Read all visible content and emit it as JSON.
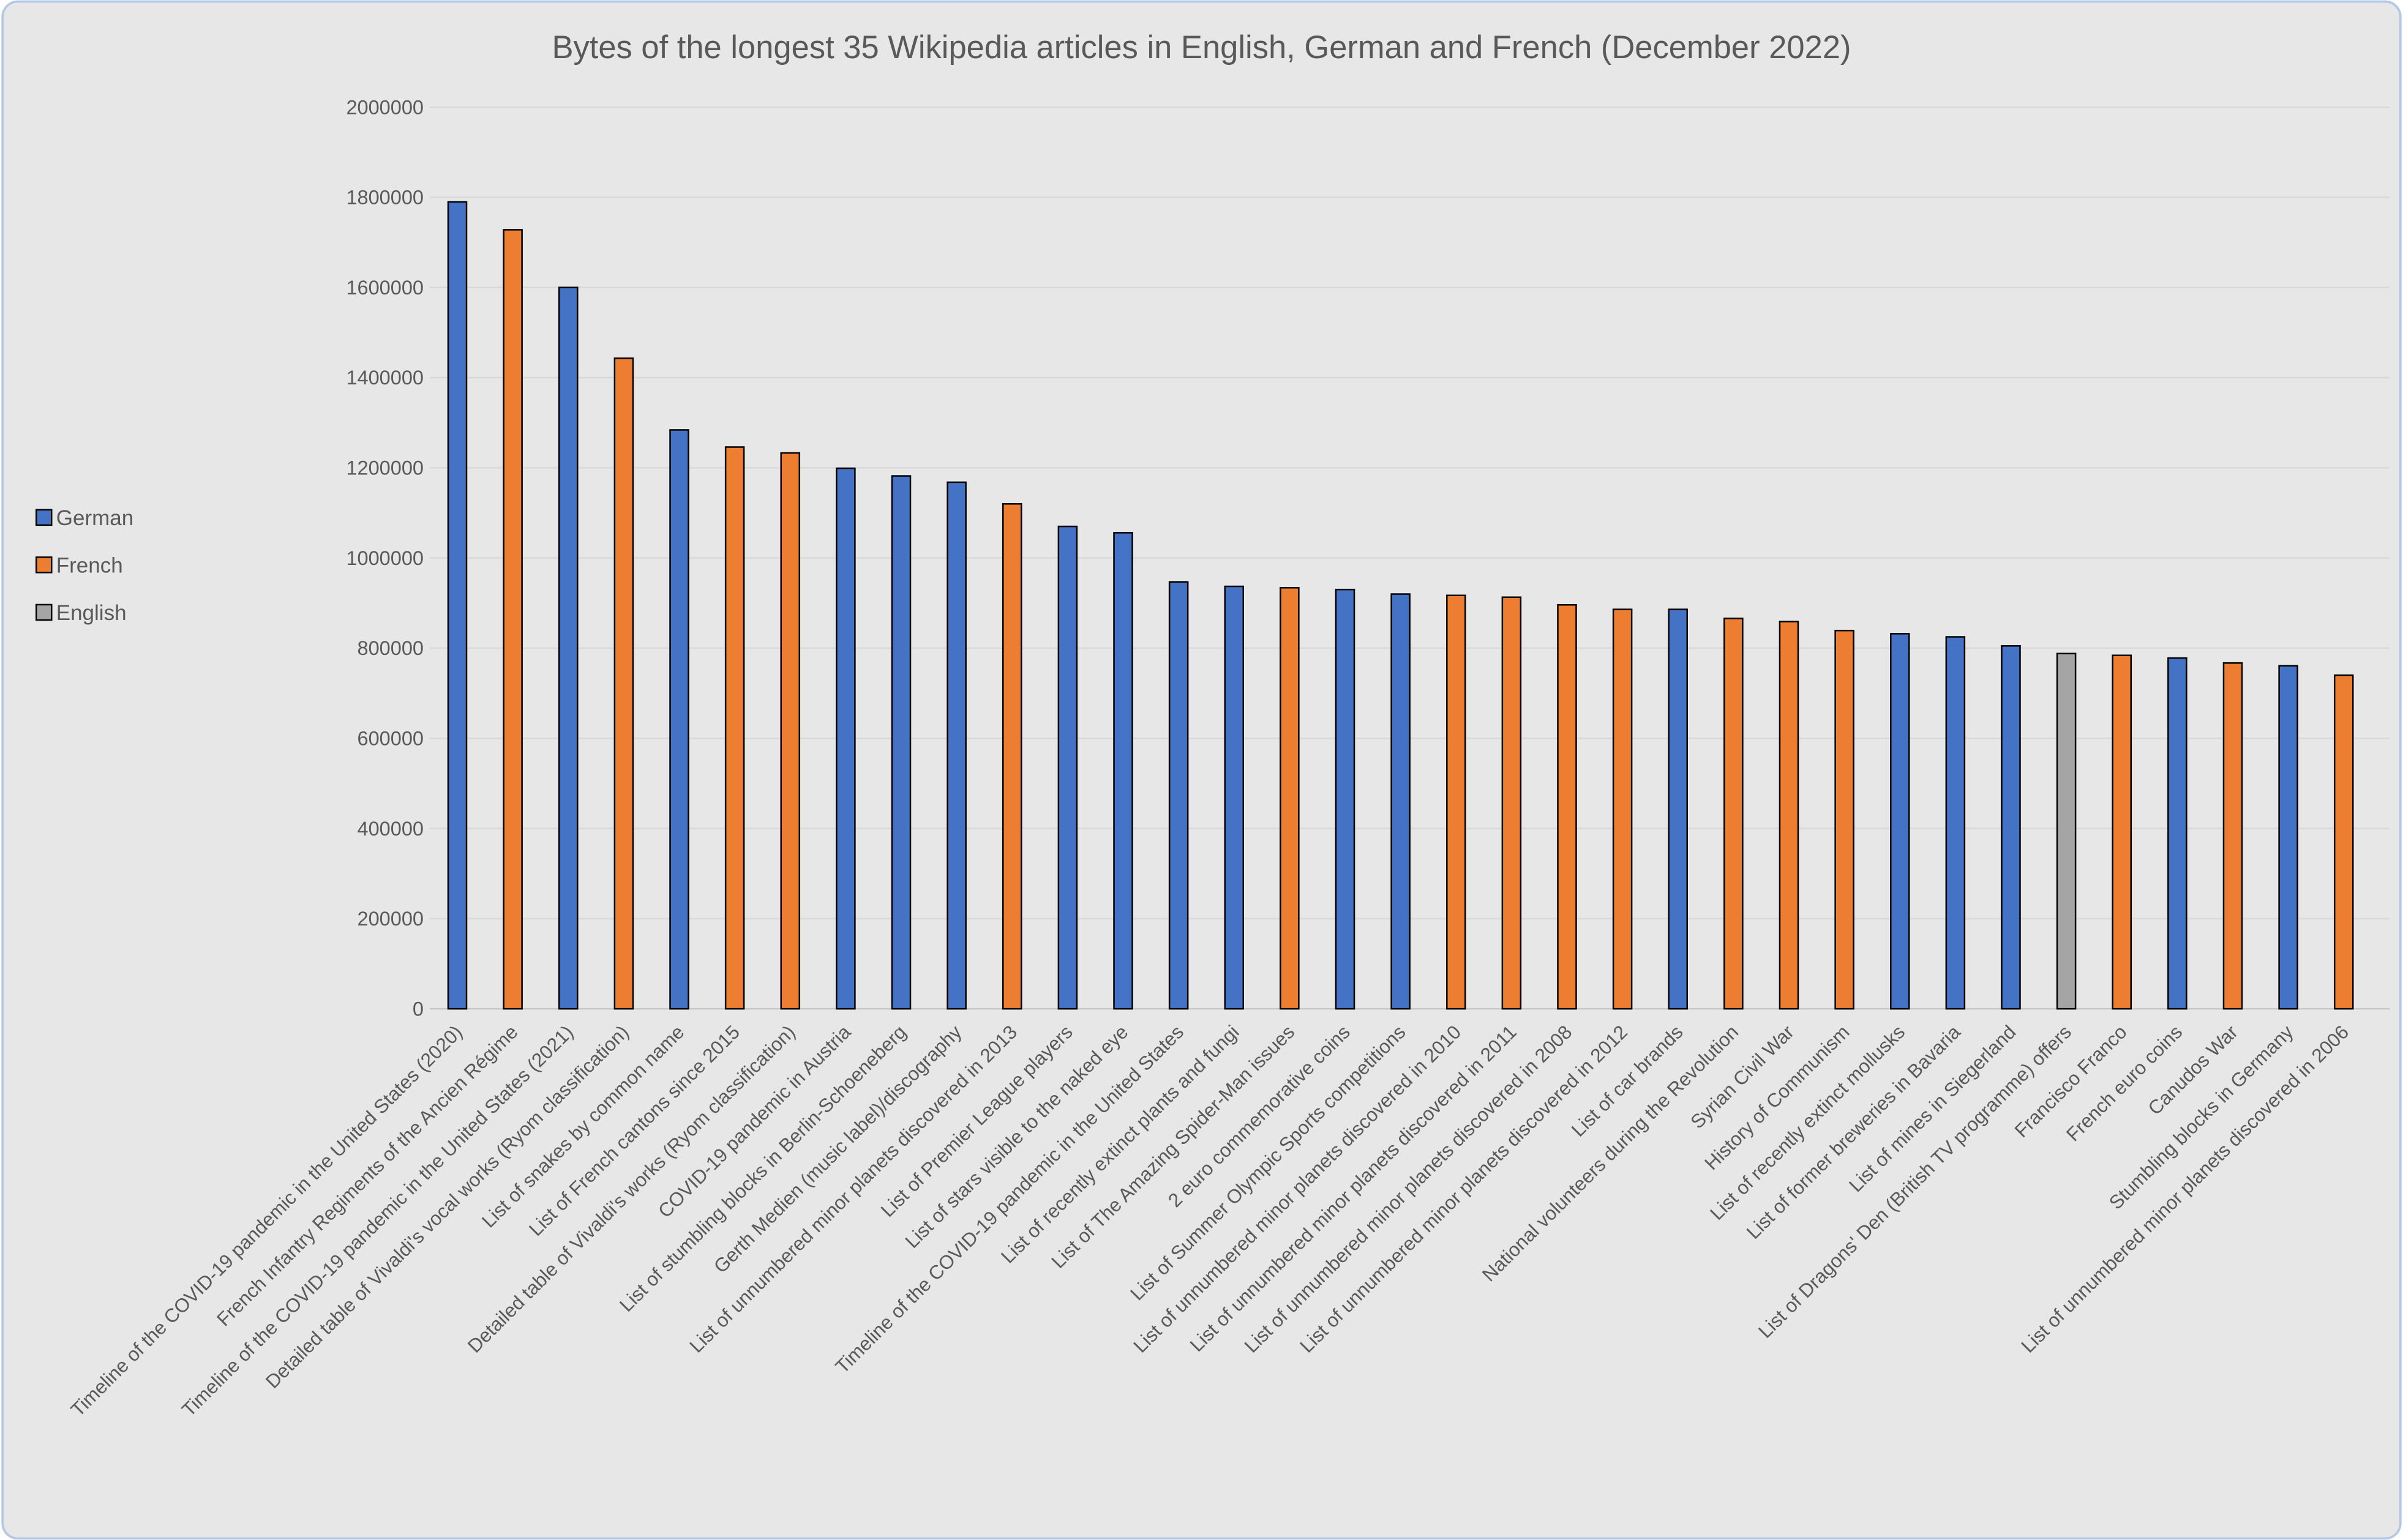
{
  "chart_data": {
    "type": "bar",
    "title": "Bytes of the longest 35 Wikipedia articles in English, German and French (December 2022)",
    "xlabel": "",
    "ylabel": "",
    "ylim": [
      0,
      2000000
    ],
    "yticks": [
      "0",
      "200000",
      "400000",
      "600000",
      "800000",
      "1000000",
      "1200000",
      "1400000",
      "1600000",
      "1800000",
      "2000000"
    ],
    "grid": true,
    "legend_position": "left",
    "series": [
      {
        "name": "German",
        "color": "#4472c4"
      },
      {
        "name": "French",
        "color": "#ed7d31"
      },
      {
        "name": "English",
        "color": "#a5a5a5"
      }
    ],
    "categories": [
      "Timeline of the COVID-19 pandemic in the United States (2020)",
      "French Infantry Regiments of the Ancien Régime",
      "Timeline of the COVID-19 pandemic in the United States (2021)",
      "Detailed table of Vivaldi's vocal works (Ryom classification)",
      "List of snakes by common name",
      "List of French cantons since 2015",
      "Detailed table of Vivaldi's works (Ryom classification)",
      "COVID-19 pandemic in Austria",
      "List of stumbling blocks in Berlin-Schoeneberg",
      "Gerth Medien (music label)/discography",
      "List of unnumbered minor planets discovered in 2013",
      "List of Premier League players",
      "List of stars visible to the naked eye",
      "Timeline of the COVID-19 pandemic in the United States",
      "List of recently extinct plants and fungi",
      "List of The Amazing Spider-Man issues",
      "2 euro commemorative coins",
      "List of Summer Olympic Sports competitions",
      "List of unnumbered minor planets discovered in 2010",
      "List of unnumbered minor planets discovered in 2011",
      "List of unnumbered minor planets discovered in 2008",
      "List of unnumbered minor planets discovered in 2012",
      "List of car brands",
      "National volunteers during the Revolution",
      "Syrian Civil War",
      "History of Communism",
      "List of recently extinct mollusks",
      "List of former breweries in Bavaria",
      "List of mines in Siegerland",
      "List of Dragons' Den (British TV programme) offers",
      "Francisco Franco",
      "French euro coins",
      "Canudos War",
      "Stumbling blocks in Germany",
      "List of unnumbered minor planets discovered in 2006"
    ],
    "language": [
      "German",
      "French",
      "German",
      "French",
      "German",
      "French",
      "French",
      "German",
      "German",
      "German",
      "French",
      "German",
      "German",
      "German",
      "German",
      "French",
      "German",
      "German",
      "French",
      "French",
      "French",
      "French",
      "German",
      "French",
      "French",
      "French",
      "German",
      "German",
      "German",
      "English",
      "French",
      "German",
      "French",
      "German",
      "French"
    ],
    "values": [
      1790000,
      1728000,
      1600000,
      1443000,
      1284000,
      1246000,
      1233000,
      1199000,
      1182000,
      1168000,
      1120000,
      1070000,
      1056000,
      947000,
      937000,
      934000,
      930000,
      920000,
      917000,
      913000,
      896000,
      886000,
      886000,
      866000,
      859000,
      839000,
      832000,
      825000,
      805000,
      788000,
      784000,
      778000,
      767000,
      761000,
      740000
    ]
  }
}
